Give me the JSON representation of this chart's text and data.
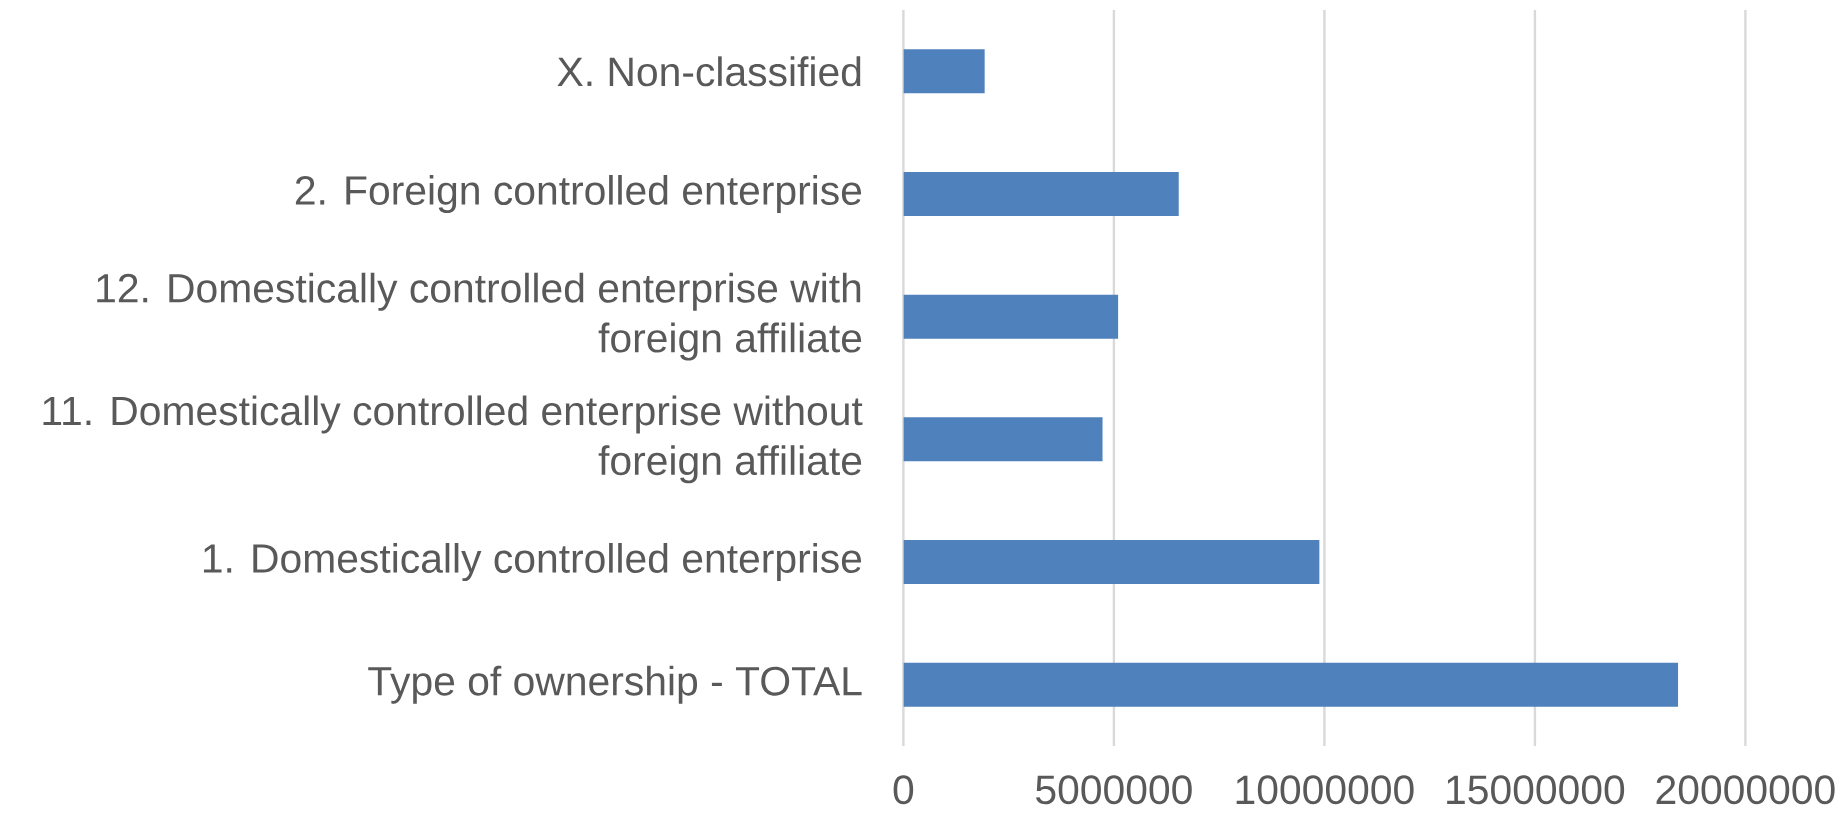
{
  "chart_data": {
    "type": "bar",
    "orientation": "horizontal",
    "categories": [
      "X. Non-classified",
      "2. Foreign controlled enterprise",
      "12. Domestically controlled enterprise with foreign affiliate",
      "11. Domestically controlled enterprise without foreign affiliate",
      "1. Domestically controlled enterprise",
      "Type of ownership - TOTAL"
    ],
    "values": [
      1930000,
      6540000,
      5100000,
      4730000,
      9880000,
      18400000
    ],
    "color": "#4f81bd",
    "xlim": [
      0,
      20000000
    ],
    "xticks": [
      0,
      5000000,
      10000000,
      15000000,
      20000000
    ],
    "grid": "x"
  }
}
